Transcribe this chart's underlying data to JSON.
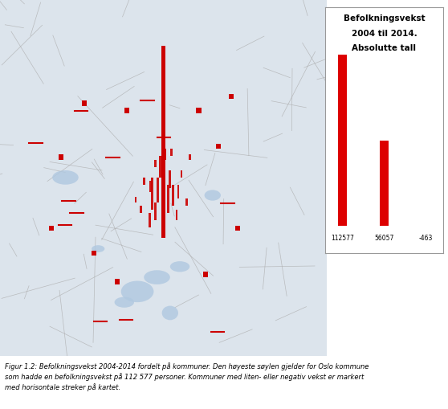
{
  "bars": [
    112577,
    56057,
    -463
  ],
  "bar_labels": [
    "112577",
    "56057",
    "-463"
  ],
  "bar_color": "#dd0000",
  "legend_title_lines": [
    "Befolkningsvekst",
    "2004 til 2014.",
    "Absolutte tall"
  ],
  "caption": "Figur 1.2: Befolkningsvekst 2004-2014 fordelt på kommuner. Den høyeste søylen gjelder for Oslo kommune\nsom hadde en befolkningsvekst på 112 577 personer. Kommuner med liten- eller negativ vekst er markert\nmed horisontale streker på kartet.",
  "map_bg": "#dce4ec",
  "fig_width": 5.58,
  "fig_height": 5.1,
  "dpi": 100
}
